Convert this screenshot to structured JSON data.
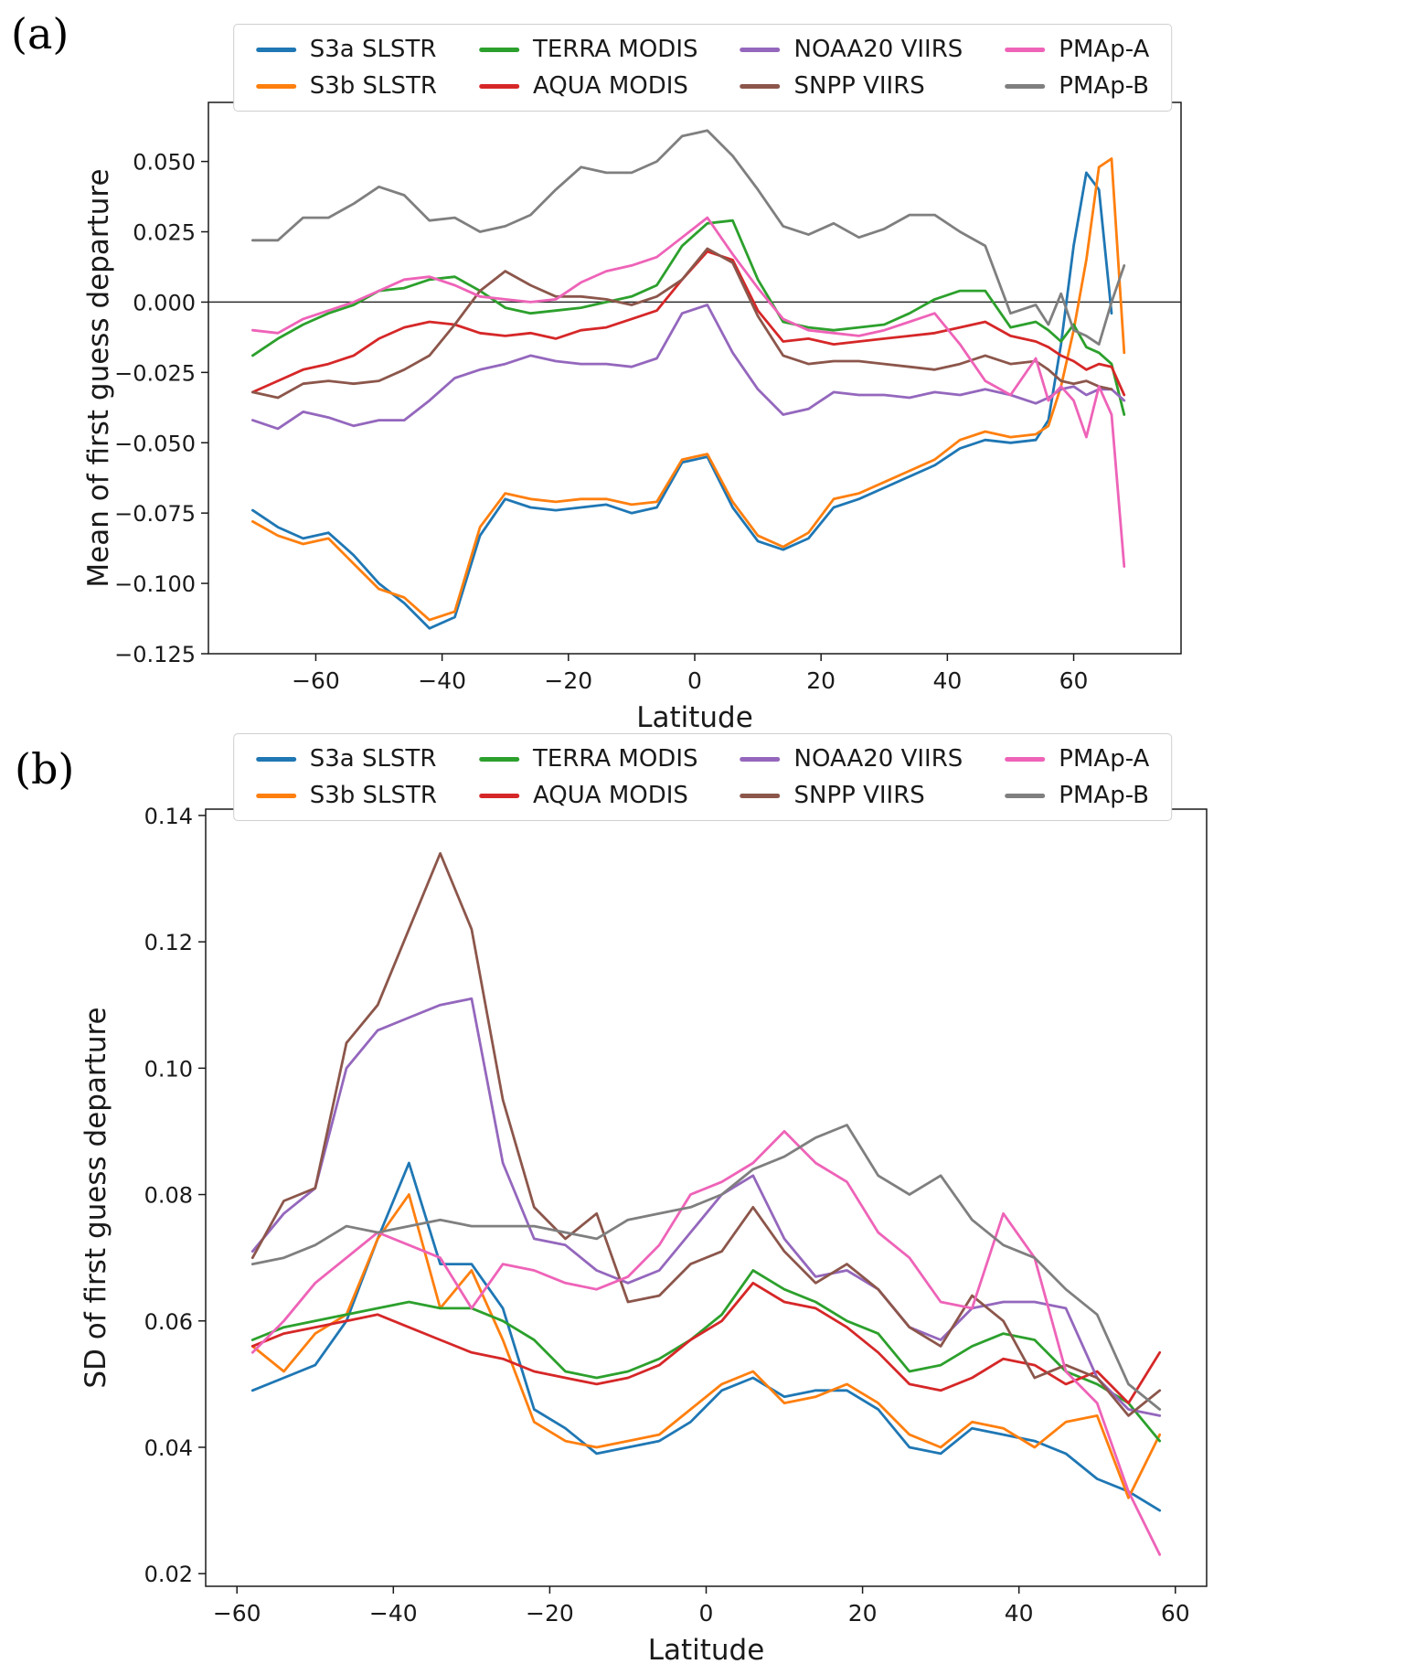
{
  "chart_data": [
    {
      "panel": "(a)",
      "type": "line",
      "title": "",
      "xlabel": "Latitude",
      "ylabel": "Mean of first guess departure",
      "grid": false,
      "legend_position": "top",
      "legend_columns": 4,
      "hline": 0,
      "xlim": [
        -77,
        77
      ],
      "ylim": [
        -0.125,
        0.071
      ],
      "xticks": [
        -60,
        -40,
        -20,
        0,
        20,
        40,
        60
      ],
      "xtick_labels": [
        "−60",
        "−40",
        "−20",
        "0",
        "20",
        "40",
        "60"
      ],
      "yticks": [
        0.05,
        0.025,
        0.0,
        -0.025,
        -0.05,
        -0.075,
        -0.1,
        -0.125
      ],
      "ytick_labels": [
        "0.050",
        "0.025",
        "0.000",
        "−0.025",
        "−0.050",
        "−0.075",
        "−0.100",
        "−0.125"
      ],
      "x": [
        -70,
        -66,
        -62,
        -58,
        -54,
        -50,
        -46,
        -42,
        -38,
        -34,
        -30,
        -26,
        -22,
        -18,
        -14,
        -10,
        -6,
        -2,
        2,
        6,
        10,
        14,
        18,
        22,
        26,
        30,
        34,
        38,
        42,
        46,
        50,
        54,
        56,
        58,
        60,
        62,
        64,
        66,
        68
      ],
      "series": [
        {
          "name": "S3a SLSTR",
          "color": "#1f77b4",
          "values": [
            -0.074,
            -0.08,
            -0.084,
            -0.082,
            -0.09,
            -0.1,
            -0.107,
            -0.116,
            -0.112,
            -0.083,
            -0.07,
            -0.073,
            -0.074,
            -0.073,
            -0.072,
            -0.075,
            -0.073,
            -0.057,
            -0.055,
            -0.073,
            -0.085,
            -0.088,
            -0.084,
            -0.073,
            -0.07,
            -0.066,
            -0.062,
            -0.058,
            -0.052,
            -0.049,
            -0.05,
            -0.049,
            -0.042,
            -0.015,
            0.02,
            0.046,
            0.04,
            -0.004,
            null
          ]
        },
        {
          "name": "S3b SLSTR",
          "color": "#ff7f0e",
          "values": [
            -0.078,
            -0.083,
            -0.086,
            -0.084,
            -0.093,
            -0.102,
            -0.105,
            -0.113,
            -0.11,
            -0.08,
            -0.068,
            -0.07,
            -0.071,
            -0.07,
            -0.07,
            -0.072,
            -0.071,
            -0.056,
            -0.054,
            -0.071,
            -0.083,
            -0.087,
            -0.082,
            -0.07,
            -0.068,
            -0.064,
            -0.06,
            -0.056,
            -0.049,
            -0.046,
            -0.048,
            -0.047,
            -0.044,
            -0.03,
            -0.01,
            0.015,
            0.048,
            0.051,
            -0.018
          ]
        },
        {
          "name": "TERRA MODIS",
          "color": "#2ca02c",
          "values": [
            -0.019,
            -0.013,
            -0.008,
            -0.004,
            -0.001,
            0.004,
            0.005,
            0.008,
            0.009,
            0.004,
            -0.002,
            -0.004,
            -0.003,
            -0.002,
            0.0,
            0.002,
            0.006,
            0.02,
            0.028,
            0.029,
            0.008,
            -0.007,
            -0.009,
            -0.01,
            -0.009,
            -0.008,
            -0.004,
            0.001,
            0.004,
            0.004,
            -0.009,
            -0.007,
            -0.01,
            -0.014,
            -0.008,
            -0.016,
            -0.018,
            -0.022,
            -0.04
          ]
        },
        {
          "name": "AQUA MODIS",
          "color": "#d62728",
          "values": [
            -0.032,
            -0.028,
            -0.024,
            -0.022,
            -0.019,
            -0.013,
            -0.009,
            -0.007,
            -0.008,
            -0.011,
            -0.012,
            -0.011,
            -0.013,
            -0.01,
            -0.009,
            -0.006,
            -0.003,
            0.008,
            0.018,
            0.015,
            -0.003,
            -0.014,
            -0.013,
            -0.015,
            -0.014,
            -0.013,
            -0.012,
            -0.011,
            -0.009,
            -0.007,
            -0.012,
            -0.014,
            -0.016,
            -0.019,
            -0.021,
            -0.024,
            -0.022,
            -0.023,
            -0.033
          ]
        },
        {
          "name": "NOAA20 VIIRS",
          "color": "#9467bd",
          "values": [
            -0.042,
            -0.045,
            -0.039,
            -0.041,
            -0.044,
            -0.042,
            -0.042,
            -0.035,
            -0.027,
            -0.024,
            -0.022,
            -0.019,
            -0.021,
            -0.022,
            -0.022,
            -0.023,
            -0.02,
            -0.004,
            -0.001,
            -0.018,
            -0.031,
            -0.04,
            -0.038,
            -0.032,
            -0.033,
            -0.033,
            -0.034,
            -0.032,
            -0.033,
            -0.031,
            -0.033,
            -0.036,
            -0.034,
            -0.031,
            -0.03,
            -0.033,
            -0.031,
            -0.031,
            -0.035
          ]
        },
        {
          "name": "SNPP VIIRS",
          "color": "#8c564b",
          "values": [
            -0.032,
            -0.034,
            -0.029,
            -0.028,
            -0.029,
            -0.028,
            -0.024,
            -0.019,
            -0.008,
            0.004,
            0.011,
            0.006,
            0.002,
            0.002,
            0.001,
            -0.001,
            0.002,
            0.008,
            0.019,
            0.014,
            -0.005,
            -0.019,
            -0.022,
            -0.021,
            -0.021,
            -0.022,
            -0.023,
            -0.024,
            -0.022,
            -0.019,
            -0.022,
            -0.021,
            -0.024,
            -0.028,
            -0.029,
            -0.028,
            -0.03,
            -0.031,
            null
          ]
        },
        {
          "name": "PMAp-A",
          "color": "#ee63b8",
          "values": [
            -0.01,
            -0.011,
            -0.006,
            -0.003,
            0.0,
            0.004,
            0.008,
            0.009,
            0.006,
            0.002,
            0.001,
            0.0,
            0.001,
            0.007,
            0.011,
            0.013,
            0.016,
            0.023,
            0.03,
            0.017,
            0.005,
            -0.006,
            -0.01,
            -0.011,
            -0.012,
            -0.01,
            -0.007,
            -0.004,
            -0.015,
            -0.028,
            -0.033,
            -0.02,
            -0.035,
            -0.03,
            -0.035,
            -0.048,
            -0.03,
            -0.04,
            -0.094
          ]
        },
        {
          "name": "PMAp-B",
          "color": "#7f7f7f",
          "values": [
            0.022,
            0.022,
            0.03,
            0.03,
            0.035,
            0.041,
            0.038,
            0.029,
            0.03,
            0.025,
            0.027,
            0.031,
            0.04,
            0.048,
            0.046,
            0.046,
            0.05,
            0.059,
            0.061,
            0.052,
            0.04,
            0.027,
            0.024,
            0.028,
            0.023,
            0.026,
            0.031,
            0.031,
            0.025,
            0.02,
            -0.004,
            -0.001,
            -0.008,
            0.003,
            -0.01,
            -0.012,
            -0.015,
            0.0,
            0.013
          ]
        }
      ]
    },
    {
      "panel": "(b)",
      "type": "line",
      "title": "",
      "xlabel": "Latitude",
      "ylabel": "SD of first guess departure",
      "grid": false,
      "legend_position": "top",
      "legend_columns": 4,
      "hline": null,
      "xlim": [
        -64,
        64
      ],
      "ylim": [
        0.018,
        0.141
      ],
      "xticks": [
        -60,
        -40,
        -20,
        0,
        20,
        40,
        60
      ],
      "xtick_labels": [
        "−60",
        "−40",
        "−20",
        "0",
        "20",
        "40",
        "60"
      ],
      "yticks": [
        0.02,
        0.04,
        0.06,
        0.08,
        0.1,
        0.12,
        0.14
      ],
      "ytick_labels": [
        "0.02",
        "0.04",
        "0.06",
        "0.08",
        "0.10",
        "0.12",
        "0.14"
      ],
      "x": [
        -58,
        -54,
        -50,
        -46,
        -42,
        -38,
        -34,
        -30,
        -26,
        -22,
        -18,
        -14,
        -10,
        -6,
        -2,
        2,
        6,
        10,
        14,
        18,
        22,
        26,
        30,
        34,
        38,
        42,
        46,
        50,
        54,
        58
      ],
      "series": [
        {
          "name": "S3a SLSTR",
          "color": "#1f77b4",
          "values": [
            0.049,
            0.051,
            0.053,
            0.06,
            0.073,
            0.085,
            0.069,
            0.069,
            0.062,
            0.046,
            0.043,
            0.039,
            0.04,
            0.041,
            0.044,
            0.049,
            0.051,
            0.048,
            0.049,
            0.049,
            0.046,
            0.04,
            0.039,
            0.043,
            0.042,
            0.041,
            0.039,
            0.035,
            0.033,
            0.03
          ]
        },
        {
          "name": "S3b SLSTR",
          "color": "#ff7f0e",
          "values": [
            0.056,
            0.052,
            0.058,
            0.061,
            0.073,
            0.08,
            0.062,
            0.068,
            0.057,
            0.044,
            0.041,
            0.04,
            0.041,
            0.042,
            0.046,
            0.05,
            0.052,
            0.047,
            0.048,
            0.05,
            0.047,
            0.042,
            0.04,
            0.044,
            0.043,
            0.04,
            0.044,
            0.045,
            0.032,
            0.042
          ]
        },
        {
          "name": "TERRA MODIS",
          "color": "#2ca02c",
          "values": [
            0.057,
            0.059,
            0.06,
            0.061,
            0.062,
            0.063,
            0.062,
            0.062,
            0.06,
            0.057,
            0.052,
            0.051,
            0.052,
            0.054,
            0.057,
            0.061,
            0.068,
            0.065,
            0.063,
            0.06,
            0.058,
            0.052,
            0.053,
            0.056,
            0.058,
            0.057,
            0.052,
            0.05,
            0.047,
            0.041
          ]
        },
        {
          "name": "AQUA MODIS",
          "color": "#d62728",
          "values": [
            0.056,
            0.058,
            0.059,
            0.06,
            0.061,
            0.059,
            0.057,
            0.055,
            0.054,
            0.052,
            0.051,
            0.05,
            0.051,
            0.053,
            0.057,
            0.06,
            0.066,
            0.063,
            0.062,
            0.059,
            0.055,
            0.05,
            0.049,
            0.051,
            0.054,
            0.053,
            0.05,
            0.052,
            0.047,
            0.055
          ]
        },
        {
          "name": "NOAA20 VIIRS",
          "color": "#9467bd",
          "values": [
            0.071,
            0.077,
            0.081,
            0.1,
            0.106,
            0.108,
            0.11,
            0.111,
            0.085,
            0.073,
            0.072,
            0.068,
            0.066,
            0.068,
            0.074,
            0.08,
            0.083,
            0.073,
            0.067,
            0.068,
            0.065,
            0.059,
            0.057,
            0.062,
            0.063,
            0.063,
            0.062,
            0.051,
            0.046,
            0.045
          ]
        },
        {
          "name": "SNPP VIIRS",
          "color": "#8c564b",
          "values": [
            0.07,
            0.079,
            0.081,
            0.104,
            0.11,
            0.122,
            0.134,
            0.122,
            0.095,
            0.078,
            0.073,
            0.077,
            0.063,
            0.064,
            0.069,
            0.071,
            0.078,
            0.071,
            0.066,
            0.069,
            0.065,
            0.059,
            0.056,
            0.064,
            0.06,
            0.051,
            0.053,
            0.051,
            0.045,
            0.049
          ]
        },
        {
          "name": "PMAp-A",
          "color": "#ee63b8",
          "values": [
            0.055,
            0.06,
            0.066,
            0.07,
            0.074,
            0.072,
            0.07,
            0.062,
            0.069,
            0.068,
            0.066,
            0.065,
            0.067,
            0.072,
            0.08,
            0.082,
            0.085,
            0.09,
            0.085,
            0.082,
            0.074,
            0.07,
            0.063,
            0.062,
            0.077,
            0.07,
            0.052,
            0.047,
            0.033,
            0.023
          ]
        },
        {
          "name": "PMAp-B",
          "color": "#7f7f7f",
          "values": [
            0.069,
            0.07,
            0.072,
            0.075,
            0.074,
            0.075,
            0.076,
            0.075,
            0.075,
            0.075,
            0.074,
            0.073,
            0.076,
            0.077,
            0.078,
            0.08,
            0.084,
            0.086,
            0.089,
            0.091,
            0.083,
            0.08,
            0.083,
            0.076,
            0.072,
            0.07,
            0.065,
            0.061,
            0.05,
            0.046
          ]
        }
      ]
    }
  ]
}
